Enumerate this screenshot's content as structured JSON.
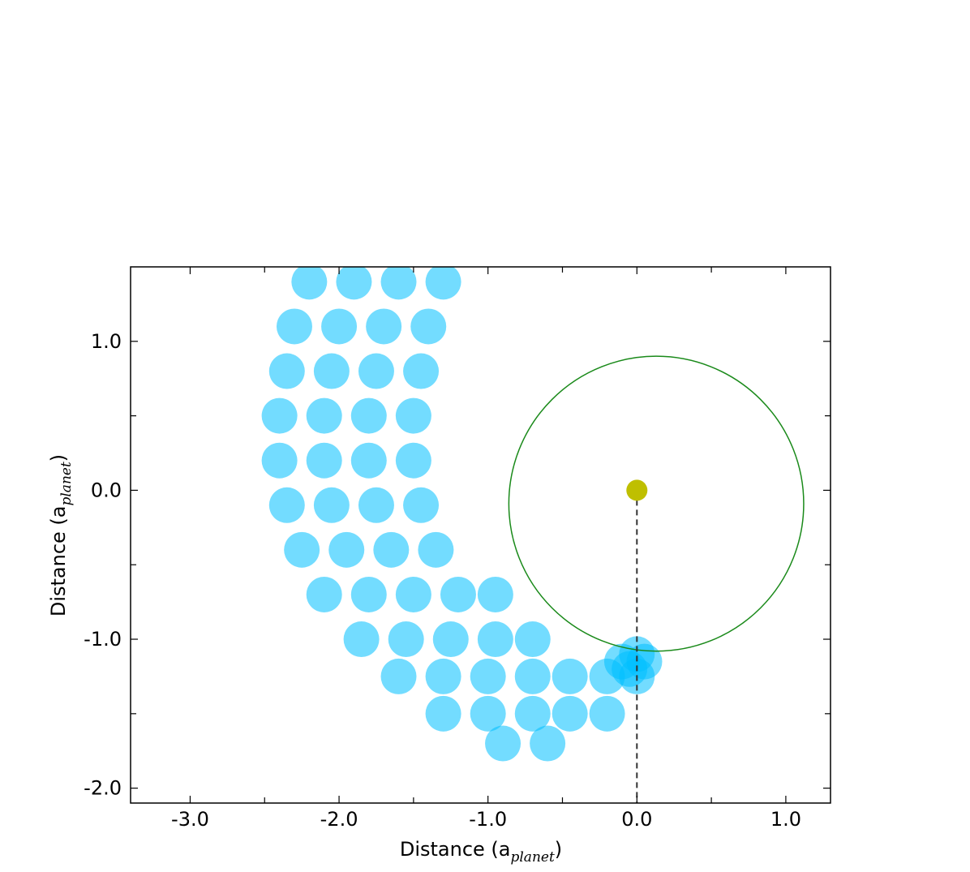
{
  "chart_data": {
    "type": "scatter",
    "xlabel": {
      "text": "Distance (a",
      "sub": "planet",
      "end": ")"
    },
    "ylabel": {
      "text": "Distance (a",
      "sub": "planet",
      "end": ")"
    },
    "xlim": [
      -3.4,
      1.3
    ],
    "ylim": [
      -2.1,
      1.5
    ],
    "xticks": [
      {
        "value": -3,
        "label": "-3.0"
      },
      {
        "value": -2,
        "label": "-2.0"
      },
      {
        "value": -1,
        "label": "-1.0"
      },
      {
        "value": 0,
        "label": "0.0"
      },
      {
        "value": 1,
        "label": "1.0"
      }
    ],
    "yticks": [
      {
        "value": -2,
        "label": "-2.0"
      },
      {
        "value": -1,
        "label": "-1.0"
      },
      {
        "value": 0,
        "label": "0.0"
      },
      {
        "value": 1,
        "label": "1.0"
      }
    ],
    "xminor": [
      -2.5,
      -1.5,
      -0.5,
      0.5
    ],
    "yminor": [
      -1.5,
      -0.5,
      0.5
    ],
    "series": [
      {
        "color": "#00bfff",
        "x": [
          -2.2,
          -1.9,
          -1.6,
          -1.3,
          -2.3,
          -2.0,
          -1.7,
          -1.4,
          -2.35,
          -2.05,
          -1.75,
          -1.45,
          -2.4,
          -2.1,
          -1.8,
          -1.5,
          -2.4,
          -2.1,
          -1.8,
          -1.5,
          -2.35,
          -2.05,
          -1.75,
          -1.45,
          -2.25,
          -1.95,
          -1.65,
          -1.35,
          -2.1,
          -1.8,
          -1.5,
          -1.2,
          -0.95,
          -1.85,
          -1.55,
          -1.25,
          -0.95,
          -0.7,
          -1.6,
          -1.3,
          -1.0,
          -0.7,
          -0.45,
          -0.2,
          0.0,
          -1.3,
          -1.0,
          -0.7,
          -0.45,
          -0.2,
          -0.9,
          -0.6,
          -0.1,
          0.05,
          -0.05,
          0.0
        ],
        "y": [
          1.4,
          1.4,
          1.4,
          1.4,
          1.1,
          1.1,
          1.1,
          1.1,
          0.8,
          0.8,
          0.8,
          0.8,
          0.5,
          0.5,
          0.5,
          0.5,
          0.2,
          0.2,
          0.2,
          0.2,
          -0.1,
          -0.1,
          -0.1,
          -0.1,
          -0.4,
          -0.4,
          -0.4,
          -0.4,
          -0.7,
          -0.7,
          -0.7,
          -0.7,
          -0.7,
          -1.0,
          -1.0,
          -1.0,
          -1.0,
          -1.0,
          -1.25,
          -1.25,
          -1.25,
          -1.25,
          -1.25,
          -1.25,
          -1.25,
          -1.5,
          -1.5,
          -1.5,
          -1.5,
          -1.5,
          -1.7,
          -1.7,
          -1.15,
          -1.15,
          -1.2,
          -1.1
        ]
      }
    ],
    "circle": {
      "center": [
        0.13,
        -0.09
      ],
      "radius": 0.99,
      "color": "#1a8a1a"
    },
    "planet": {
      "x": 0,
      "y": 0,
      "color": "#bfbf00"
    },
    "dashed_line": {
      "x": [
        0,
        0
      ],
      "y": [
        0,
        -2.1
      ],
      "color": "#333333"
    }
  }
}
